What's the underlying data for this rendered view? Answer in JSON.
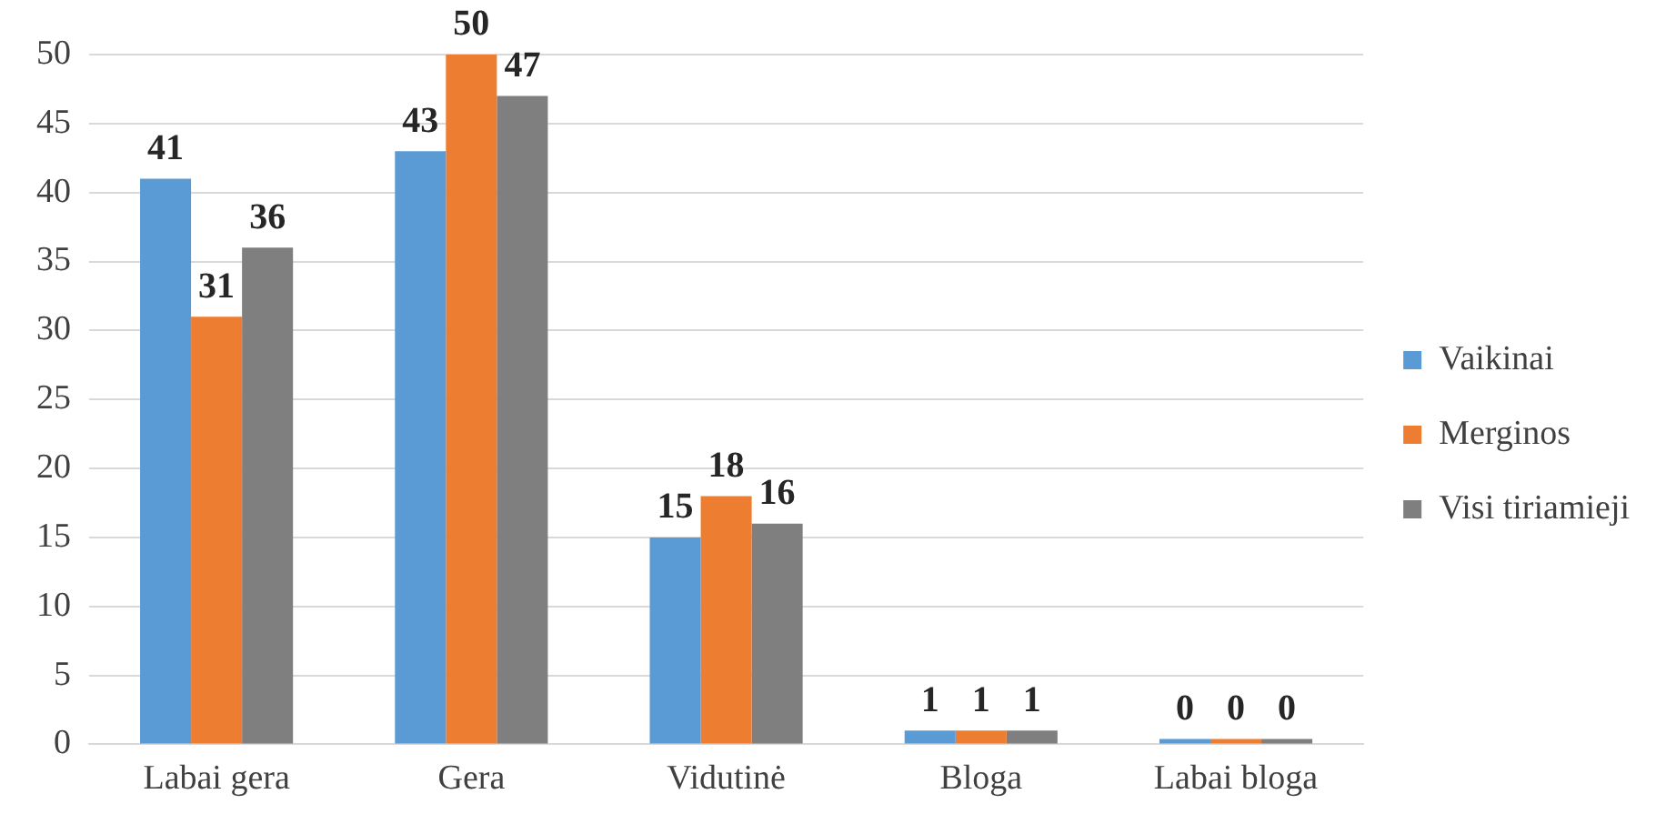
{
  "chart_data": {
    "type": "bar",
    "categories": [
      "Labai gera",
      "Gera",
      "Vidutinė",
      "Bloga",
      "Labai bloga"
    ],
    "series": [
      {
        "name": "Vaikinai",
        "color": "#5b9bd5",
        "values": [
          41,
          43,
          15,
          1,
          0
        ]
      },
      {
        "name": "Merginos",
        "color": "#ed7d31",
        "values": [
          31,
          50,
          18,
          1,
          0
        ]
      },
      {
        "name": "Visi tiriamieji",
        "color": "#7f7f7f",
        "values": [
          36,
          47,
          16,
          1,
          0
        ]
      }
    ],
    "ylim": [
      0,
      50
    ],
    "yticks": [
      0,
      5,
      10,
      15,
      20,
      25,
      30,
      35,
      40,
      45,
      50
    ],
    "grid": "y",
    "legend": "right",
    "data_labels": true
  }
}
